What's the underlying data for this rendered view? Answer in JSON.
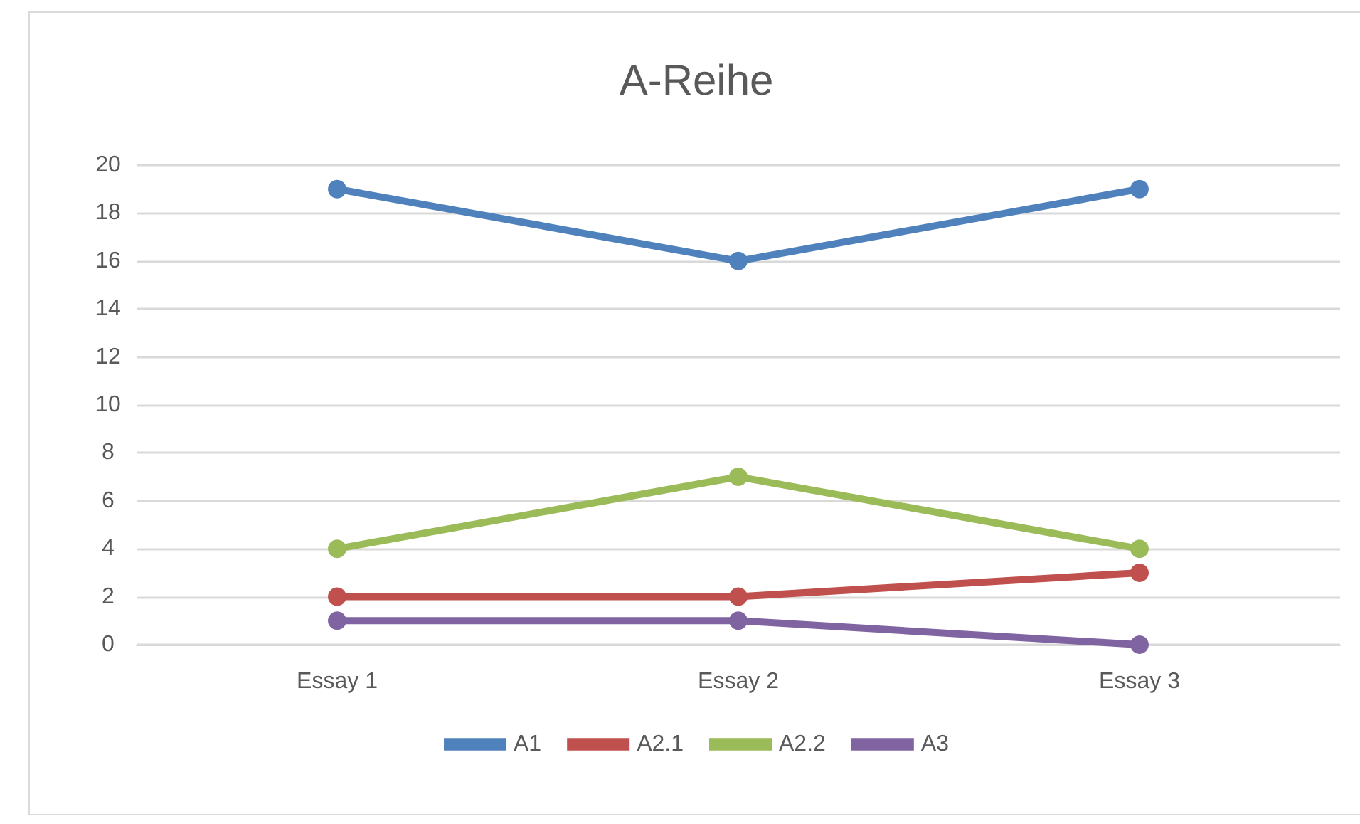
{
  "chart_data": {
    "type": "line",
    "title": "A-Reihe",
    "categories": [
      "Essay 1",
      "Essay 2",
      "Essay 3"
    ],
    "series": [
      {
        "name": "A1",
        "color": "#4f81bd",
        "values": [
          19,
          16,
          19
        ]
      },
      {
        "name": "A2.1",
        "color": "#c0504d",
        "values": [
          2,
          2,
          3
        ]
      },
      {
        "name": "A2.2",
        "color": "#9bbb59",
        "values": [
          4,
          7,
          4
        ]
      },
      {
        "name": "A3",
        "color": "#8064a2",
        "values": [
          1,
          1,
          0
        ]
      }
    ],
    "ylim": [
      0,
      20
    ],
    "yticks": [
      0,
      2,
      4,
      6,
      8,
      10,
      12,
      14,
      16,
      18,
      20
    ],
    "grid": "y",
    "legend": "bottom",
    "marker": "circle",
    "line_style": "solid"
  }
}
